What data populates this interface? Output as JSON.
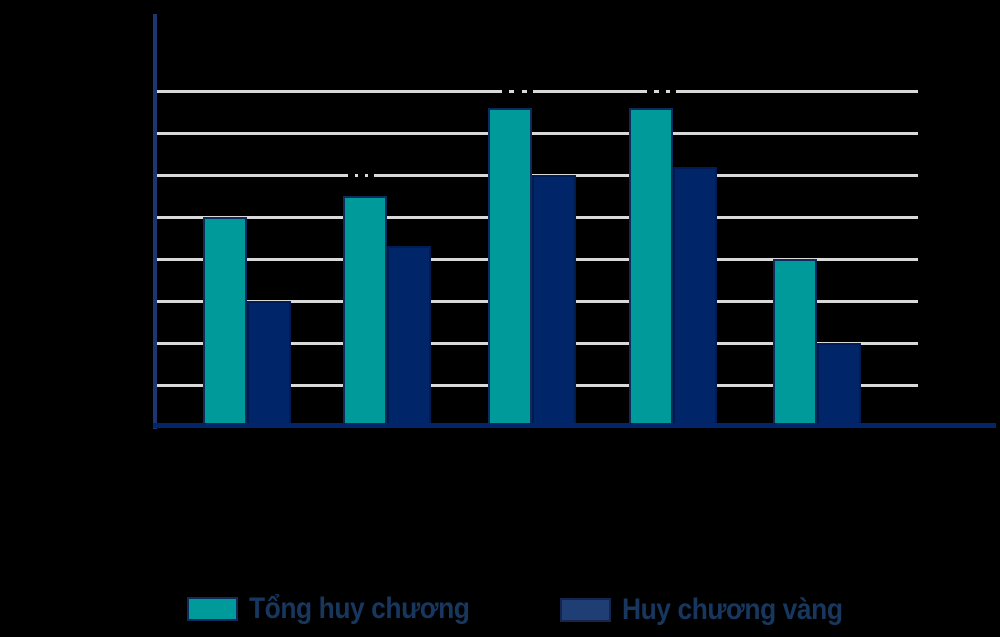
{
  "page": {
    "background_color": "#000000"
  },
  "legend": {
    "text_color": "#17375e",
    "items": [
      {
        "label": "Tổng huy chương",
        "swatch_color": "#009a9a",
        "swatch_border": "#0f2b5b"
      },
      {
        "label": "Huy chương vàng",
        "swatch_color": "#1f3e73",
        "swatch_border": "#16254e"
      }
    ]
  },
  "chart_data": {
    "type": "bar",
    "title": "",
    "categories": [
      "",
      "",
      "",
      "",
      ""
    ],
    "series": [
      {
        "name": "Tổng huy chương",
        "color": "#009a9a",
        "values": [
          250,
          275,
          380,
          380,
          200
        ]
      },
      {
        "name": "Huy chương vàng",
        "color": "#002569",
        "values": [
          150,
          215,
          300,
          310,
          100
        ]
      }
    ],
    "ylim": [
      0,
      400
    ],
    "gridline_step": 50,
    "grid": "horizontal",
    "gridline_color": "#d9d9d9",
    "axis_color": "#1b3671",
    "legend_position": "bottom",
    "tick_labels_visible": false,
    "values_estimated_from_gridlines": true
  }
}
